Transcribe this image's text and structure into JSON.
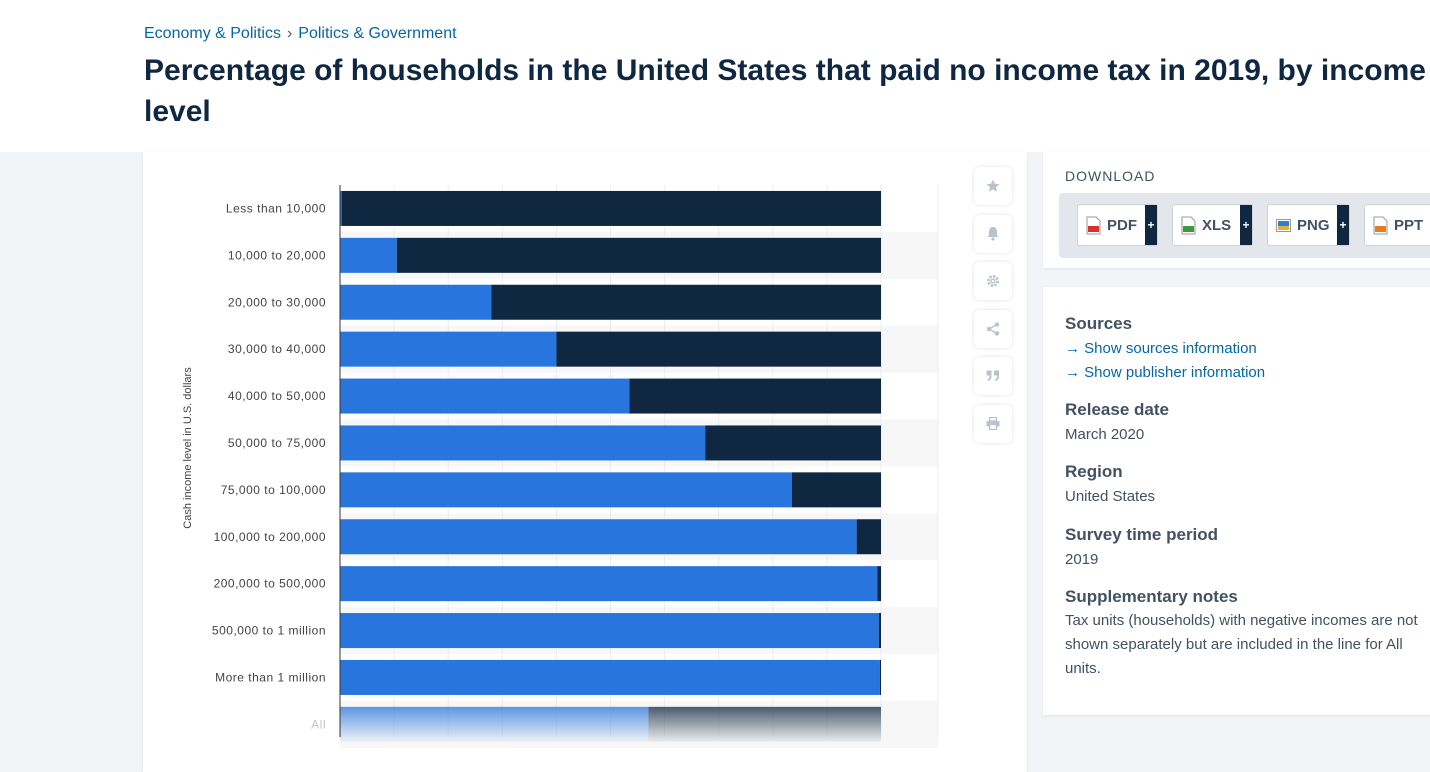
{
  "breadcrumb": {
    "item1": "Economy & Politics",
    "separator": "›",
    "item2": "Politics & Government"
  },
  "title": "Percentage of households in the United States that paid no income tax in 2019, by income level",
  "download": {
    "label": "DOWNLOAD",
    "buttons": [
      {
        "label": "PDF",
        "icon": "pdf-file-icon",
        "color": "#d9302c"
      },
      {
        "label": "XLS",
        "icon": "xls-file-icon",
        "color": "#3c9a3c"
      },
      {
        "label": "PNG",
        "icon": "png-file-icon",
        "color": "#2f7fd0"
      },
      {
        "label": "PPT",
        "icon": "ppt-file-icon",
        "color": "#e77d22"
      }
    ],
    "plus": "+"
  },
  "tools": [
    "star-icon",
    "bell-icon",
    "gear-icon",
    "share-icon",
    "quote-icon",
    "print-icon"
  ],
  "info": {
    "sources_heading": "Sources",
    "sources_link": "→ Show sources information",
    "publisher_link": "→ Show publisher information",
    "release_heading": "Release date",
    "release_value": "March 2020",
    "region_heading": "Region",
    "region_value": "United States",
    "survey_heading": "Survey time period",
    "survey_value": "2019",
    "notes_heading": "Supplementary notes",
    "notes_value": "Tax units (households) with negative incomes are not shown separately but are included in the line for All units."
  },
  "colors": {
    "primary": "#2876dd",
    "secondary": "#0f2741",
    "link": "#0666a3"
  },
  "chart_data": {
    "type": "bar",
    "orientation": "horizontal",
    "stacked": true,
    "ylabel": "Cash income level in U.S. dollars",
    "xlim": [
      0,
      100
    ],
    "categories": [
      "Less than 10,000",
      "10,000 to 20,000",
      "20,000 to 30,000",
      "30,000 to 40,000",
      "40,000 to 50,000",
      "50,000 to 75,000",
      "75,000 to 100,000",
      "100,000 to 200,000",
      "200,000 to 500,000",
      "500,000 to 1 million",
      "More than 1 million",
      "All"
    ],
    "series": [
      {
        "color": "#2876dd",
        "values": [
          0.3,
          10.5,
          28,
          40,
          53.5,
          67.5,
          83.5,
          95.5,
          99.3,
          99.6,
          99.8,
          57
        ]
      },
      {
        "color": "#0f2741",
        "values": [
          99.7,
          89.5,
          72,
          60,
          46.5,
          32.5,
          16.5,
          4.5,
          0.7,
          0.4,
          0.2,
          43
        ]
      }
    ]
  }
}
